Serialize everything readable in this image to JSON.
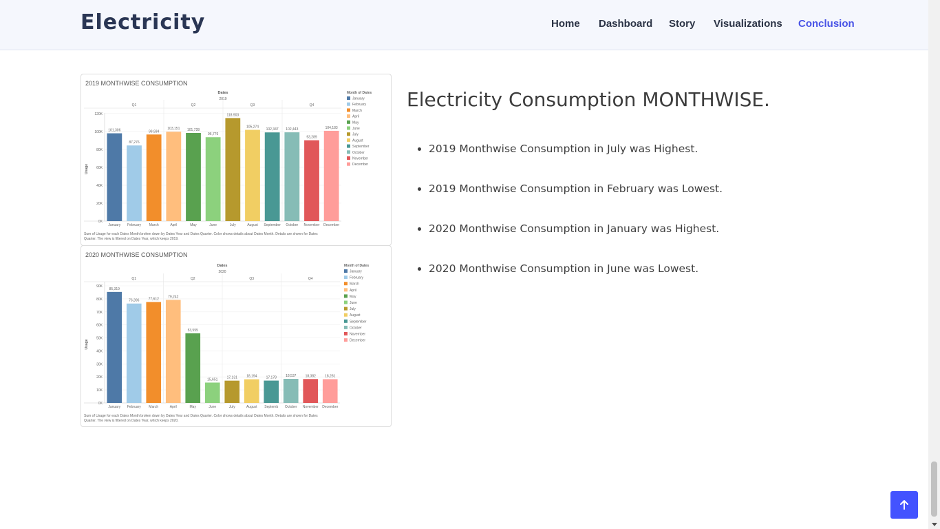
{
  "brand": "Electricity",
  "nav": {
    "items": [
      {
        "label": "Home",
        "active": false
      },
      {
        "label": "Dashboard",
        "active": false
      },
      {
        "label": "Story",
        "active": false
      },
      {
        "label": "Visualizations",
        "active": false
      },
      {
        "label": "Conclusion",
        "active": true
      }
    ],
    "active_color": "#4853e6"
  },
  "content": {
    "title": "Electricity Consumption MONTHWISE.",
    "bullets": [
      "2019 Monthwise Consumption in July was Highest.",
      "2019 Monthwise Consumption in February was Lowest.",
      "2020 Monthwise Consumption in January was Highest.",
      "2020 Monthwise Consumption in June was Lowest."
    ]
  },
  "back_to_top": {
    "icon": "arrow-up-icon",
    "color": "#4353ff"
  },
  "chart_data": [
    {
      "type": "bar",
      "title": "2019 MONTHWISE CONSUMPTION",
      "header": "Dates",
      "year_label": "2019",
      "quarters": [
        "Q1",
        "Q2",
        "Q3",
        "Q4"
      ],
      "ylabel": "Usage",
      "ylim": [
        0,
        140000
      ],
      "yticks": [
        "0K",
        "20K",
        "40K",
        "60K",
        "80K",
        "100K",
        "120K"
      ],
      "categories": [
        "January",
        "February",
        "March",
        "April",
        "May",
        "June",
        "July",
        "August",
        "September",
        "October",
        "November",
        "December"
      ],
      "values": [
        101306,
        87276,
        99934,
        103151,
        101728,
        96776,
        118903,
        105274,
        102347,
        102443,
        93289,
        104183
      ],
      "value_labels": [
        "101,306",
        "87,276",
        "99,934",
        "103,151",
        "101,728",
        "96,776",
        "118,903",
        "105,274",
        "102,347",
        "102,443",
        "93,289",
        "104,183"
      ],
      "legend_title": "Month of Dates",
      "footnote": "Sum of Usage for each Dates Month broken down by Dates Year and Dates Quarter.  Color shows details about Dates Month.  Details are shown for Dates Quarter. The view is filtered on Dates Year, which keeps 2019."
    },
    {
      "type": "bar",
      "title": "2020 MONTHWISE CONSUMPTION",
      "header": "Dates",
      "year_label": "2020",
      "quarters": [
        "Q1",
        "Q2",
        "Q3",
        "Q4"
      ],
      "ylabel": "Usage",
      "ylim": [
        0,
        90000
      ],
      "yticks": [
        "0K",
        "10K",
        "20K",
        "30K",
        "40K",
        "50K",
        "60K",
        "70K",
        "80K",
        "90K"
      ],
      "categories": [
        "January",
        "February",
        "March",
        "April",
        "May",
        "June",
        "July",
        "August",
        "Septemb",
        "October",
        "November",
        "December"
      ],
      "values": [
        85319,
        76396,
        77612,
        79242,
        53555,
        15651,
        17131,
        18194,
        17178,
        18537,
        18382,
        18281
      ],
      "value_labels": [
        "85,319",
        "76,396",
        "77,612",
        "79,242",
        "53,555",
        "15,651",
        "17,131",
        "18,194",
        "17,178",
        "18,537",
        "18,382",
        "18,281"
      ],
      "legend_title": "Month of Dates",
      "footnote": "Sum of Usage for each Dates Month broken down by Dates Year and Dates Quarter.  Color shows details about Dates Month.  Details are shown for Dates Quarter. The view is filtered on Dates Year, which keeps 2020."
    }
  ],
  "legend": {
    "months": [
      "January",
      "February",
      "March",
      "April",
      "May",
      "June",
      "July",
      "August",
      "September",
      "October",
      "November",
      "December"
    ],
    "colors": [
      "#4e79a7",
      "#a0cbe8",
      "#f28e2b",
      "#ffbe7d",
      "#59a14f",
      "#8cd17d",
      "#b6992d",
      "#f1ce63",
      "#499894",
      "#86bcb6",
      "#e15759",
      "#ff9d9a"
    ]
  }
}
